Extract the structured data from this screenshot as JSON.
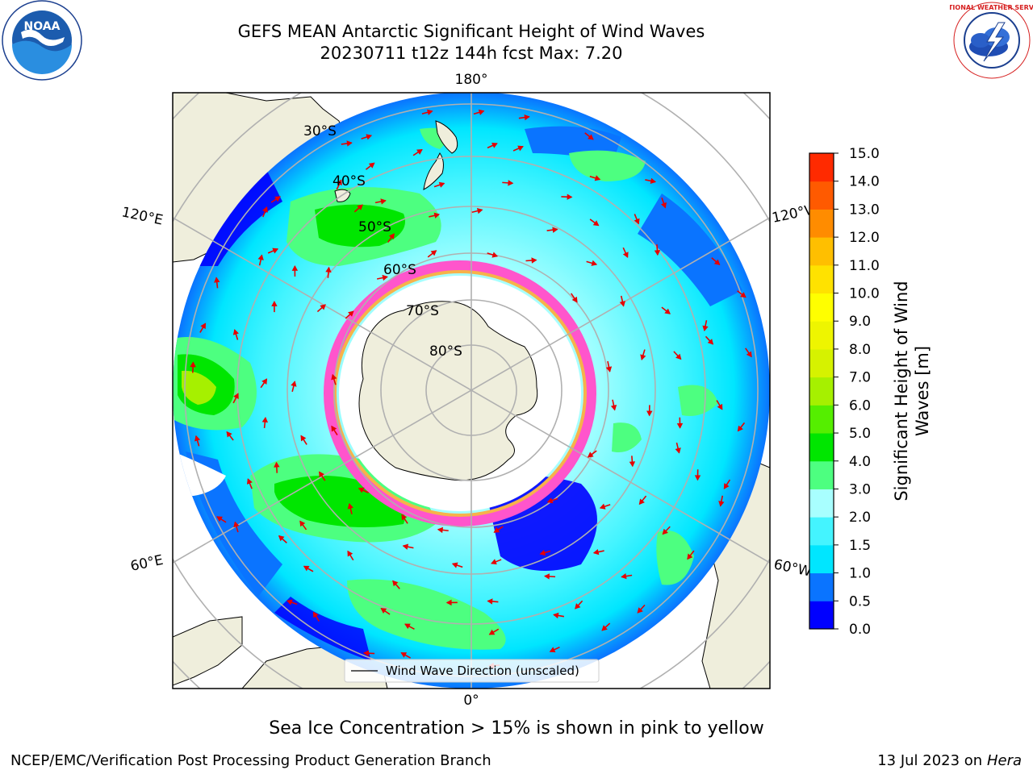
{
  "title": {
    "line1": "GEFS MEAN Antarctic Significant Height of Wind Waves",
    "line2": "20230711 t12z 144h fcst   Max: 7.20"
  },
  "logos": {
    "noaa_text": "NOAA",
    "nws_text": "NATIONAL WEATHER SERVICE"
  },
  "map": {
    "longitude_labels": {
      "top": "180°",
      "bottom": "0°",
      "left_upper": "120°E",
      "left_lower": "60°E",
      "right_upper": "120°W",
      "right_lower": "60°W"
    },
    "latitude_labels": [
      "30°S",
      "40°S",
      "50°S",
      "60°S",
      "70°S",
      "80°S"
    ],
    "legend_label": "Wind Wave Direction (unscaled)",
    "colors": {
      "land": "#efeedc",
      "ice": "#ffffff",
      "arrow": "#e60000",
      "grid": "#b0b0b0"
    }
  },
  "colorbar": {
    "label_line1": "Significant Height of Wind",
    "label_line2": "Waves [m]",
    "ticks": [
      "0.0",
      "0.5",
      "1.0",
      "1.5",
      "2.0",
      "3.0",
      "4.0",
      "5.0",
      "6.0",
      "7.0",
      "8.0",
      "9.0",
      "10.0",
      "11.0",
      "12.0",
      "13.0",
      "14.0",
      "15.0"
    ],
    "colors": [
      "#0000ff",
      "#0a74ff",
      "#00e6ff",
      "#44f4ff",
      "#a8ffff",
      "#4dff80",
      "#00e600",
      "#55ee00",
      "#a6f000",
      "#d6f200",
      "#eef500",
      "#ffff00",
      "#ffe200",
      "#ffbf00",
      "#ff8c00",
      "#ff5a00",
      "#ff2a00"
    ]
  },
  "footer": {
    "caption": "Sea Ice Concentration > 15% is shown in pink to yellow",
    "credit": "NCEP/EMC/Verification Post Processing Product Generation Branch",
    "date": "13 Jul 2023 on ",
    "machine": "Hera"
  }
}
